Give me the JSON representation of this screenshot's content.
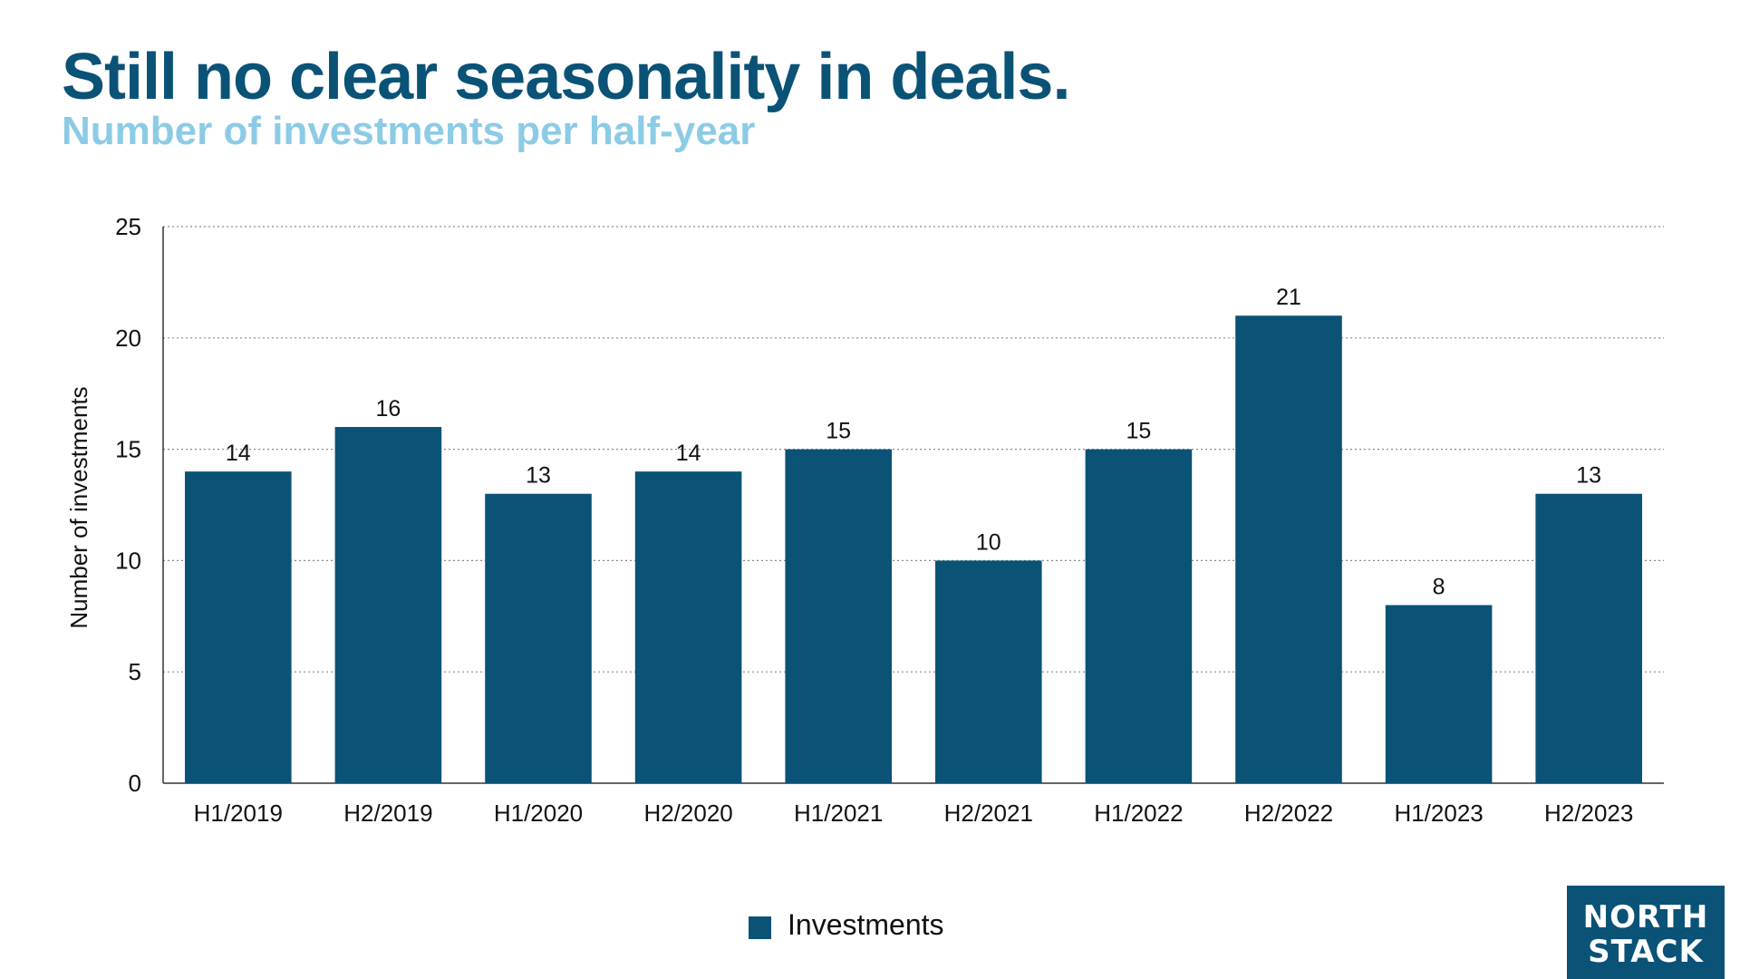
{
  "chart_data": {
    "type": "bar",
    "title": "Still no clear seasonality in deals.",
    "subtitle": "Number of investments per half-year",
    "xlabel": "",
    "ylabel": "Number of investments",
    "ylim": [
      0,
      25
    ],
    "yticks": [
      0,
      5,
      10,
      15,
      20,
      25
    ],
    "grid": true,
    "legend_position": "bottom-center",
    "categories": [
      "H1/2019",
      "H2/2019",
      "H1/2020",
      "H2/2020",
      "H1/2021",
      "H2/2021",
      "H1/2022",
      "H2/2022",
      "H1/2023",
      "H2/2023"
    ],
    "series": [
      {
        "name": "Investments",
        "values": [
          14,
          16,
          13,
          14,
          15,
          10,
          15,
          21,
          8,
          13
        ]
      }
    ]
  },
  "colors": {
    "bar": "#0a5276",
    "title": "#0a5276",
    "subtitle": "#8ccbe6",
    "grid": "#8a8a8a",
    "axis": "#333333",
    "text": "#111111"
  },
  "legend": {
    "label": "Investments"
  },
  "logo": {
    "line1": "NORTH",
    "line2": "STACK"
  }
}
